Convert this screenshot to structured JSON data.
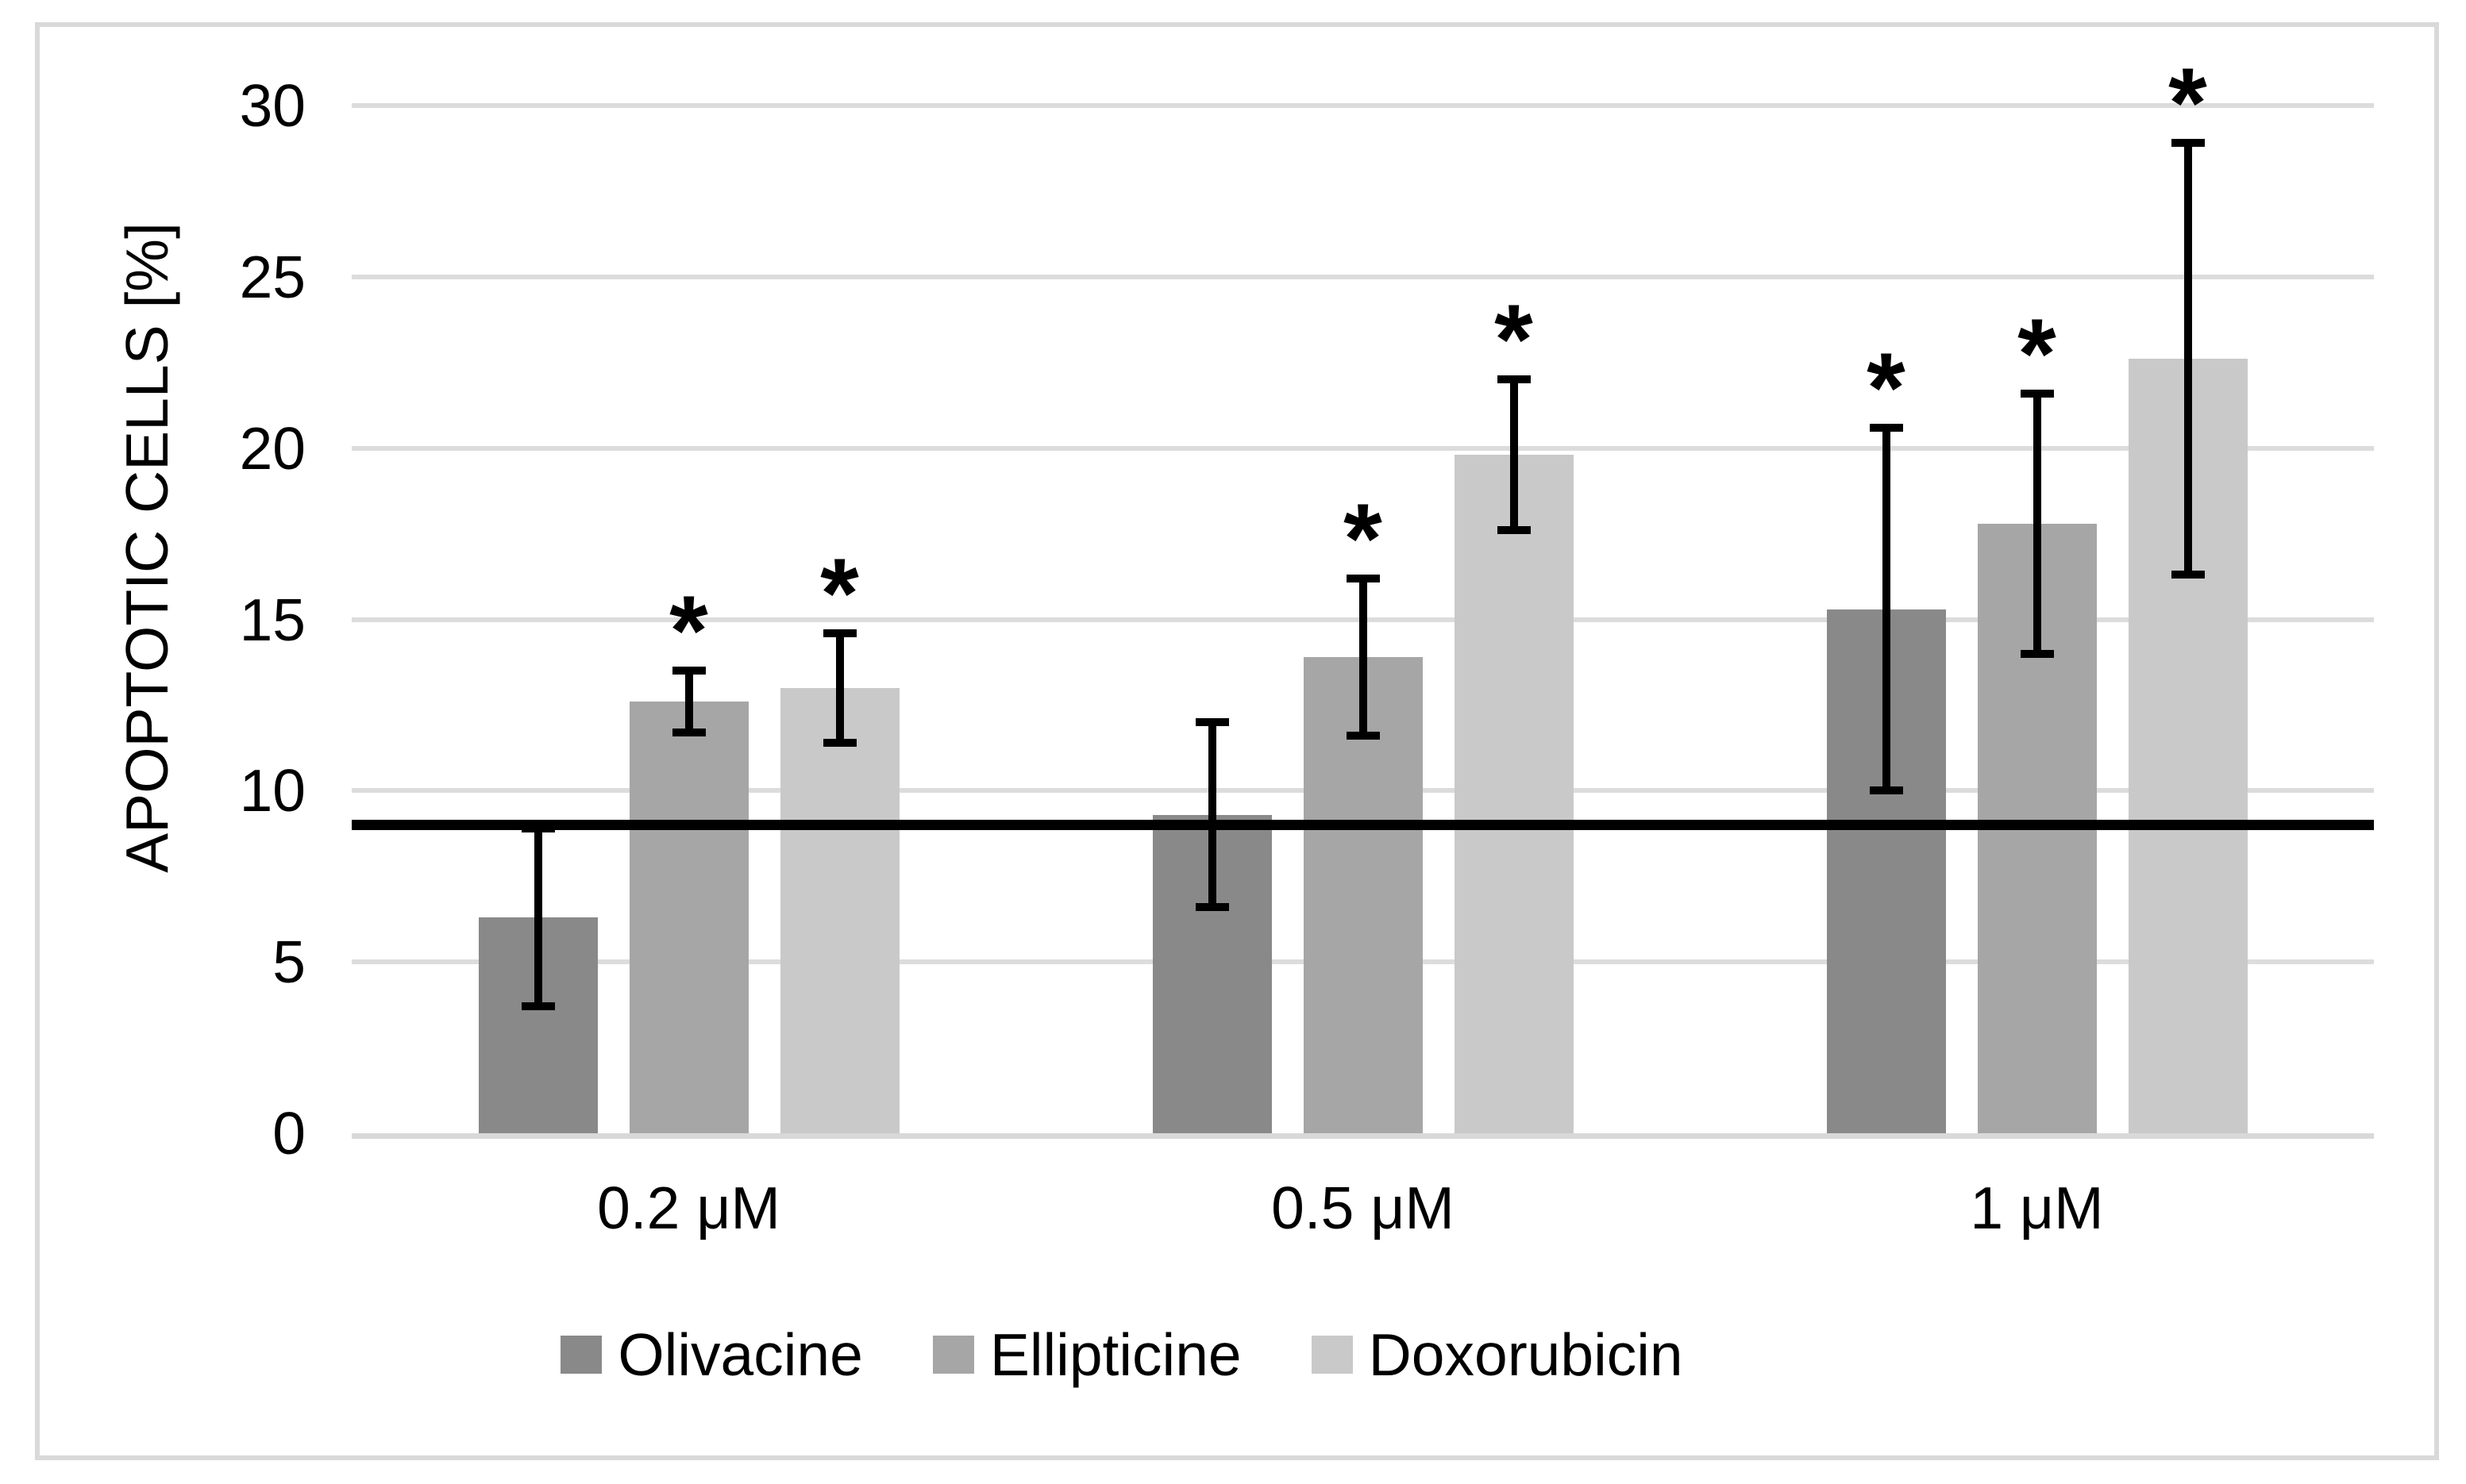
{
  "figure": {
    "background_color": "#ffffff",
    "border_color": "#d9d9d9"
  },
  "chart_data": {
    "type": "bar",
    "title": "",
    "ylabel": "APOPTOTIC CELLS [%]",
    "xlabel": "",
    "ylim": [
      0,
      30
    ],
    "yticks": [
      0,
      5,
      10,
      15,
      20,
      25,
      30
    ],
    "grid": "horizontal",
    "gridline_color": "#dcdcdc",
    "axis_line_color": "#d9d9d9",
    "text_color": "#000000",
    "error_bar_color": "#000000",
    "significance_marker": "*",
    "legend_position": "bottom",
    "categories": [
      "0.2 μM",
      "0.5 μM",
      "1 μM"
    ],
    "series": [
      {
        "name": "Olivacine",
        "color": "#898989",
        "values": [
          6.3,
          9.3,
          15.3
        ],
        "errors": [
          2.6,
          2.7,
          5.3
        ],
        "significant": [
          false,
          false,
          true
        ]
      },
      {
        "name": "Ellipticine",
        "color": "#a6a6a6",
        "values": [
          12.6,
          13.9,
          17.8
        ],
        "errors": [
          0.9,
          2.3,
          3.8
        ],
        "significant": [
          true,
          true,
          true
        ]
      },
      {
        "name": "Doxorubicin",
        "color": "#c9c9c9",
        "values": [
          13.0,
          19.8,
          22.6
        ],
        "errors": [
          1.6,
          2.2,
          6.3
        ],
        "significant": [
          true,
          true,
          true
        ]
      }
    ],
    "reference_line": {
      "value": 9.0,
      "color": "#000000"
    }
  }
}
